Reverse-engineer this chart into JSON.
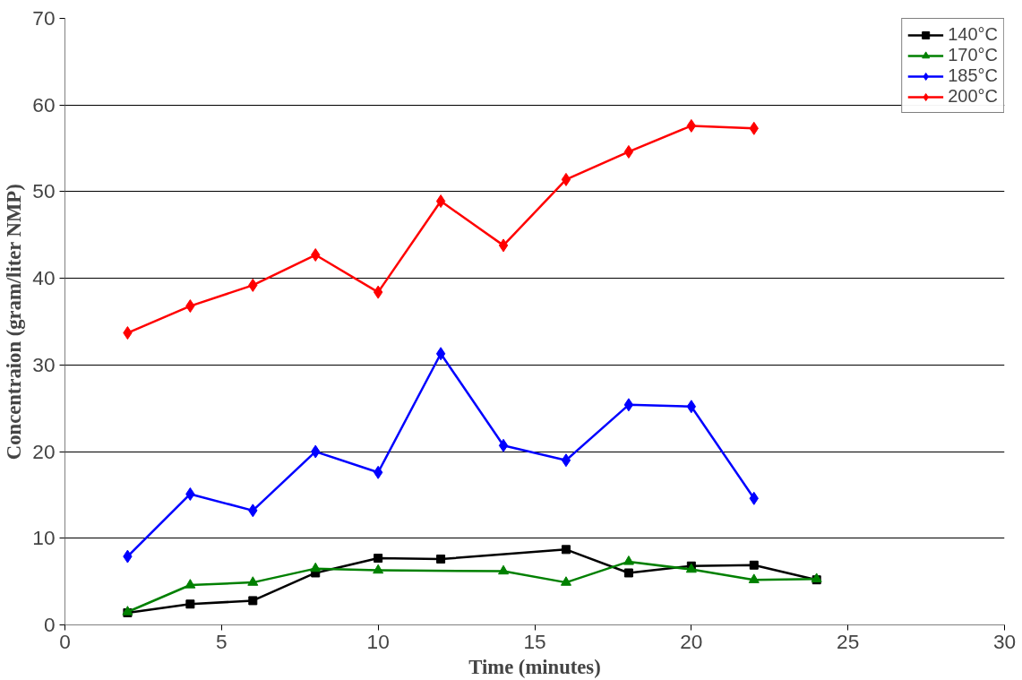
{
  "chart_data": {
    "type": "line",
    "xlabel": "Time (minutes)",
    "ylabel": "Concentraion (gram/liter NMP)",
    "xlim": [
      0,
      30
    ],
    "xticks": [
      0,
      5,
      10,
      15,
      20,
      25,
      30
    ],
    "ylim": [
      0,
      70
    ],
    "yticks": [
      0,
      10,
      20,
      30,
      40,
      50,
      60,
      70
    ],
    "grid": "y",
    "legend": "top right",
    "series": [
      {
        "name": "140°C",
        "color": "#000000",
        "marker": "square",
        "x": [
          2,
          4,
          6,
          8,
          10,
          12,
          16,
          18,
          20,
          22,
          24
        ],
        "values": [
          1.4,
          2.4,
          2.8,
          6.0,
          7.7,
          7.6,
          8.7,
          6.0,
          6.8,
          6.9,
          5.2
        ]
      },
      {
        "name": "170°C",
        "color": "#008000",
        "marker": "triangle",
        "x": [
          2,
          4,
          6,
          8,
          10,
          14,
          16,
          18,
          20,
          22,
          24
        ],
        "values": [
          1.5,
          4.6,
          4.9,
          6.5,
          6.3,
          6.2,
          4.9,
          7.3,
          6.4,
          5.2,
          5.3
        ]
      },
      {
        "name": "185°C",
        "color": "#0000ff",
        "marker": "diamond",
        "x": [
          2,
          4,
          6,
          8,
          10,
          12,
          14,
          16,
          18,
          20,
          22
        ],
        "values": [
          7.9,
          15.1,
          13.2,
          20.0,
          17.6,
          31.3,
          20.7,
          19.0,
          25.4,
          25.2,
          14.6
        ]
      },
      {
        "name": "200°C",
        "color": "#ff0000",
        "marker": "diamond",
        "x": [
          2,
          4,
          6,
          8,
          10,
          12,
          14,
          16,
          18,
          20,
          22
        ],
        "values": [
          33.7,
          36.8,
          39.2,
          42.7,
          38.4,
          48.9,
          43.8,
          51.4,
          54.6,
          57.6,
          57.3
        ]
      }
    ]
  }
}
